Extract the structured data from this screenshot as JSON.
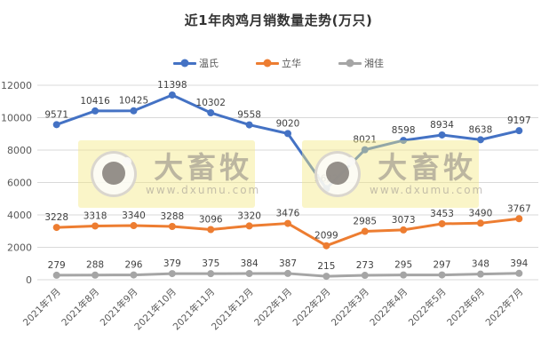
{
  "title": "近1年肉鸡月销数量走势(万只)",
  "watermark": {
    "brand": "大畜牧",
    "url": "www.dxumu.com"
  },
  "colors": {
    "gridline": "#d9d9d9",
    "axis_text": "#595959",
    "data_label": "#404040"
  },
  "chart_data": {
    "type": "line",
    "title": "近1年肉鸡月销数量走势(万只)",
    "categories": [
      "2021年7月",
      "2021年8月",
      "2021年9月",
      "2021年10月",
      "2021年11月",
      "2021年12月",
      "2022年1月",
      "2022年2月",
      "2022年3月",
      "2022年4月",
      "2022年5月",
      "2022年6月",
      "2022年7月"
    ],
    "series": [
      {
        "name": "温氏",
        "color": "#4472C4",
        "values": [
          9571,
          10416,
          10425,
          11398,
          10302,
          9558,
          9020,
          5622,
          8021,
          8598,
          8934,
          8638,
          9197
        ]
      },
      {
        "name": "立华",
        "color": "#ED7D31",
        "values": [
          3228,
          3318,
          3340,
          3288,
          3096,
          3320,
          3476,
          2099,
          2985,
          3073,
          3453,
          3490,
          3767
        ]
      },
      {
        "name": "湘佳",
        "color": "#A5A5A5",
        "values": [
          279,
          288,
          296,
          379,
          375,
          384,
          387,
          215,
          273,
          295,
          297,
          348,
          394
        ]
      }
    ],
    "y_ticks": [
      0,
      2000,
      4000,
      6000,
      8000,
      10000,
      12000
    ],
    "ylim": [
      0,
      12000
    ],
    "grid": true,
    "legend_position": "top",
    "data_labels": true
  }
}
